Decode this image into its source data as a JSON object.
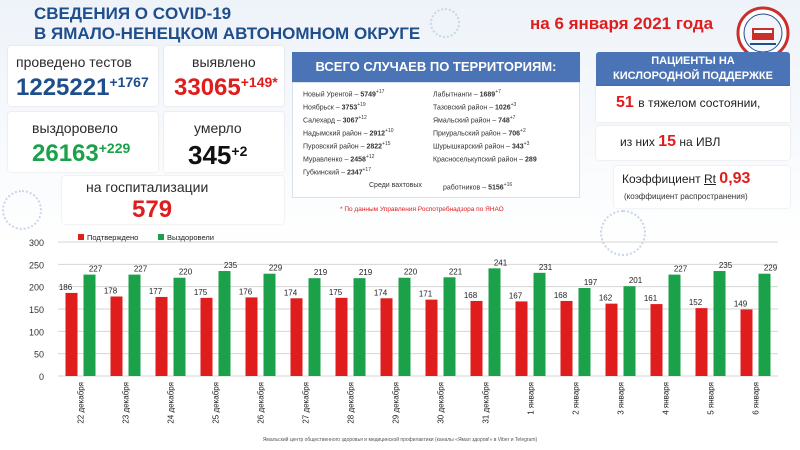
{
  "header": {
    "title_line1": "СВЕДЕНИЯ О COVID-19",
    "title_line2": "В ЯМАЛО-НЕНЕЦКОМ АВТОНОМНОМ ОКРУГЕ",
    "date": "на 6 января 2021 года"
  },
  "stats": {
    "tests_label": "проведено тестов",
    "tests_value": "1225221",
    "tests_delta": "+1767",
    "detected_label": "выявлено",
    "detected_value": "33065",
    "detected_delta": "+149*",
    "recovered_label": "выздоровело",
    "recovered_value": "26163",
    "recovered_delta": "+229",
    "died_label": "умерло",
    "died_value": "345",
    "died_delta": "+2",
    "hosp_label": "на госпитализации",
    "hosp_value": "579"
  },
  "territories": {
    "heading": "ВСЕГО СЛУЧАЕВ ПО ТЕРРИТОРИЯМ:",
    "left": [
      {
        "name": "Новый Уренгой",
        "value": "5749",
        "delta": "+17"
      },
      {
        "name": "Ноябрьск",
        "value": "3753",
        "delta": "+19"
      },
      {
        "name": "Салехард",
        "value": "3067",
        "delta": "+12"
      },
      {
        "name": "Надымский район",
        "value": "2912",
        "delta": "+10"
      },
      {
        "name": "Пуровский район",
        "value": "2822",
        "delta": "+15"
      },
      {
        "name": "Муравленко",
        "value": "2458",
        "delta": "+12"
      },
      {
        "name": "Губкинский",
        "value": "2347",
        "delta": "+17"
      }
    ],
    "right": [
      {
        "name": "Лабытнанги",
        "value": "1689",
        "delta": "+7"
      },
      {
        "name": "Тазовский район",
        "value": "1026",
        "delta": "+3"
      },
      {
        "name": "Ямальский район",
        "value": "748",
        "delta": "+7"
      },
      {
        "name": "Приуральский район",
        "value": "706",
        "delta": "+2"
      },
      {
        "name": "Шурышкарский район",
        "value": "343",
        "delta": "+3"
      },
      {
        "name": "Красноселькупский район",
        "value": "289",
        "delta": ""
      }
    ],
    "shift_label1": "Среди вахтовых",
    "shift_label2": "работников",
    "shift_value": "5156",
    "shift_delta": "+16",
    "source_note": "* По данным Управления  Роспотребнадзора по ЯНАО"
  },
  "oxygen": {
    "heading_line1": "ПАЦИЕНТЫ НА",
    "heading_line2": "КИСЛОРОДНОЙ ПОДДЕРЖКЕ",
    "severe_value": "51",
    "severe_label": "в тяжелом состоянии,",
    "ivl_prefix": "из них",
    "ivl_value": "15",
    "ivl_mid": "на",
    "ivl_label": "ИВЛ",
    "rt_label": "Коэффициент",
    "rt_symbol": "Rt",
    "rt_value": "0,93",
    "rt_note": "(коэффициент распространения)"
  },
  "footer": "Ямальский центр общественного здоровья и медицинской профилактики (каналы «Ямал здоров!» в Viber и Telegram)",
  "colors": {
    "confirmed": "#e01d1d",
    "recovered": "#1aa14a",
    "accent": "#1f4e8c"
  },
  "chart_data": {
    "type": "bar",
    "categories": [
      "22 декабря",
      "23 декабря",
      "24 декабря",
      "25 декабря",
      "26 декабря",
      "27 декабря",
      "28 декабря",
      "29 декабря",
      "30 декабря",
      "31 декабря",
      "1 января",
      "2 января",
      "3 января",
      "4 января",
      "5 января",
      "6 января"
    ],
    "series": [
      {
        "name": "Подтверждено",
        "color": "#e01d1d",
        "values": [
          186,
          178,
          177,
          175,
          176,
          174,
          175,
          174,
          171,
          168,
          167,
          168,
          162,
          161,
          152,
          149
        ]
      },
      {
        "name": "Выздоровели",
        "color": "#1aa14a",
        "values": [
          227,
          227,
          220,
          235,
          229,
          219,
          219,
          220,
          221,
          241,
          231,
          197,
          201,
          227,
          235,
          229
        ]
      }
    ],
    "ylim": [
      0,
      300
    ],
    "yticks": [
      0,
      50,
      100,
      150,
      200,
      250,
      300
    ],
    "grid": true,
    "legend": "top-left"
  }
}
